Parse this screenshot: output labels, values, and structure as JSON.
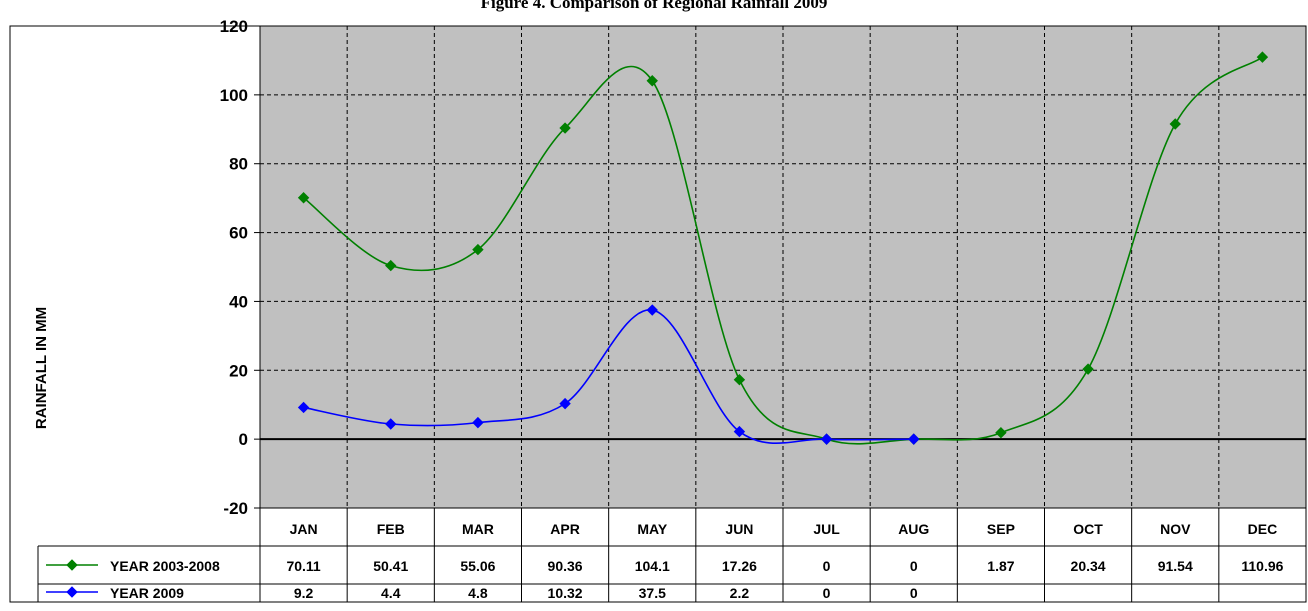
{
  "chart_data": {
    "type": "line",
    "title": "Figure 4. Comparison of Regional Rainfall 2009",
    "ylabel": "RAINFALL IN MM",
    "xlabel": "",
    "ylim": [
      -20,
      120
    ],
    "yticks": [
      -20,
      0,
      20,
      40,
      60,
      80,
      100,
      120
    ],
    "grid": true,
    "smooth": true,
    "legend_placement": "data-table-left",
    "categories": [
      "JAN",
      "FEB",
      "MAR",
      "APR",
      "MAY",
      "JUN",
      "JUL",
      "AUG",
      "SEP",
      "OCT",
      "NOV",
      "DEC"
    ],
    "series": [
      {
        "name": "YEAR 2003-2008",
        "color": "#008000",
        "marker": "diamond",
        "values": [
          70.11,
          50.41,
          55.06,
          90.36,
          104.1,
          17.26,
          0,
          0,
          1.87,
          20.34,
          91.54,
          110.96
        ],
        "table_values": [
          "70.11",
          "50.41",
          "55.06",
          "90.36",
          "104.1",
          "17.26",
          "0",
          "0",
          "1.87",
          "20.34",
          "91.54",
          "110.96"
        ]
      },
      {
        "name": "YEAR 2009",
        "color": "#0000ff",
        "marker": "diamond",
        "values": [
          9.2,
          4.4,
          4.8,
          10.32,
          37.5,
          2.2,
          0,
          0,
          null,
          null,
          null,
          null
        ],
        "table_values": [
          "9.2",
          "4.4",
          "4.8",
          "10.32",
          "37.5",
          "2.2",
          "0",
          "0",
          "",
          "",
          "",
          ""
        ]
      }
    ],
    "plot_background": "#c0c0c0"
  }
}
